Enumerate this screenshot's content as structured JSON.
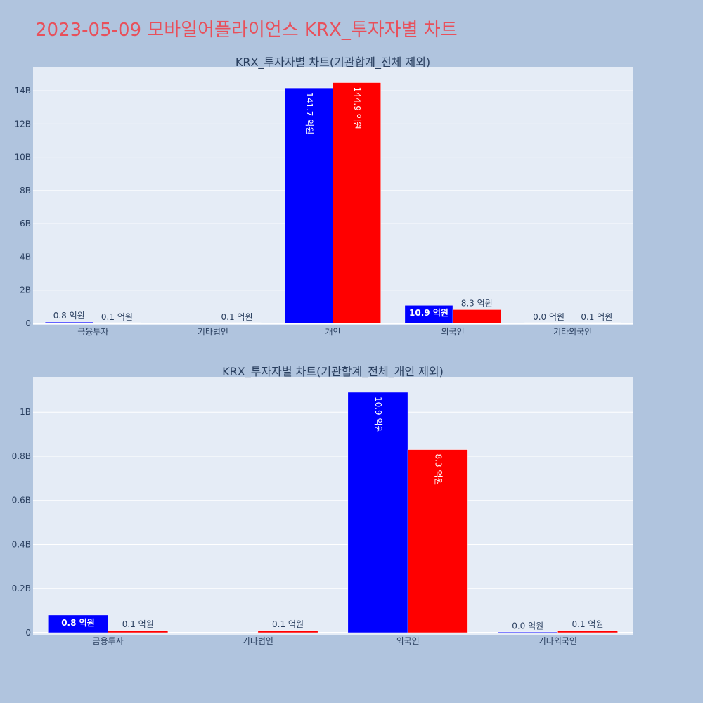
{
  "page": {
    "title": "2023-05-09 모바일어플라이언스 KRX_투자자별 차트",
    "title_color": "#e8505b",
    "background": "#b0c4de",
    "plot_background": "#e5ecf6",
    "grid_color": "#ffffff"
  },
  "chart_data": [
    {
      "type": "bar",
      "title": "KRX_투자자별 차트(기관합계_전체 제외)",
      "xlabel": "",
      "ylabel": "",
      "categories": [
        "금융투자",
        "기타법인",
        "개인",
        "외국인",
        "기타외국인"
      ],
      "ylim": [
        0,
        15400000000
      ],
      "yticks": [
        0,
        2000000000,
        4000000000,
        6000000000,
        8000000000,
        10000000000,
        12000000000,
        14000000000
      ],
      "ytick_labels": [
        "0",
        "2B",
        "4B",
        "6B",
        "8B",
        "10B",
        "12B",
        "14B"
      ],
      "grid": true,
      "series": [
        {
          "color": "#0000ff",
          "values": [
            80000000,
            null,
            14170000000,
            1090000000,
            2000000
          ],
          "labels": [
            "0.8 억원",
            "",
            "141.7 억원",
            "10.9 억원",
            "0.0 억원"
          ]
        },
        {
          "color": "#ff0000",
          "values": [
            10000000,
            10000000,
            14490000000,
            830000000,
            10000000
          ],
          "labels": [
            "0.1 억원",
            "0.1 억원",
            "144.9 억원",
            "8.3 억원",
            "0.1 억원"
          ]
        }
      ]
    },
    {
      "type": "bar",
      "title": "KRX_투자자별 차트(기관합계_전체_개인 제외)",
      "xlabel": "",
      "ylabel": "",
      "categories": [
        "금융투자",
        "기타법인",
        "외국인",
        "기타외국인"
      ],
      "ylim": [
        0,
        1160000000
      ],
      "yticks": [
        0,
        200000000,
        400000000,
        600000000,
        800000000,
        1000000000
      ],
      "ytick_labels": [
        "0",
        "0.2B",
        "0.4B",
        "0.6B",
        "0.8B",
        "1B"
      ],
      "grid": true,
      "series": [
        {
          "color": "#0000ff",
          "values": [
            80000000,
            null,
            1090000000,
            2000000
          ],
          "labels": [
            "0.8 억원",
            "",
            "10.9 억원",
            "0.0 억원"
          ]
        },
        {
          "color": "#ff0000",
          "values": [
            10000000,
            10000000,
            830000000,
            10000000
          ],
          "labels": [
            "0.1 억원",
            "0.1 억원",
            "8.3 억원",
            "0.1 억원"
          ]
        }
      ]
    }
  ]
}
